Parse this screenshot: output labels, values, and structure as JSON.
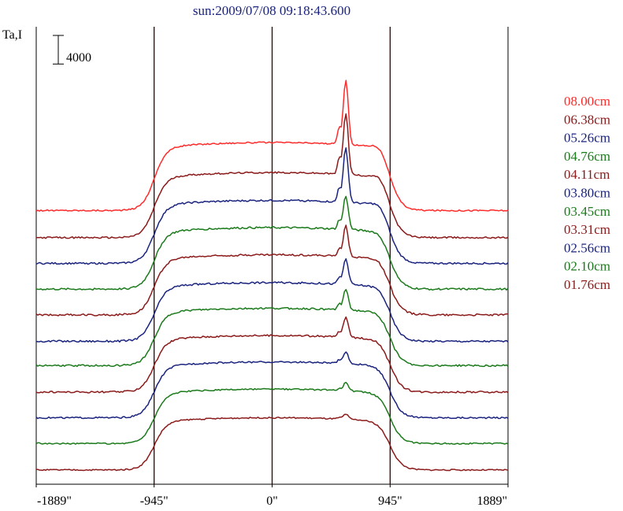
{
  "chart_data": {
    "type": "line",
    "title": "sun:2009/07/08 09:18:43.600",
    "ylabel": "Ta,I",
    "scale_bar_label": "4000",
    "scale_bar_value": 4000,
    "x_tick_labels": [
      "-1889\"",
      "-945\"",
      "0\"",
      "945\"",
      "1889\""
    ],
    "x_ticks": [
      -1889,
      -945,
      0,
      945,
      1889
    ],
    "xlim": [
      -1889,
      1889
    ],
    "ylim": [
      -1000,
      63000
    ],
    "vertical_lines": [
      -945,
      0,
      945
    ],
    "grid": false,
    "legend_position": "right",
    "colors": {
      "title": "#1a237e",
      "axes": "#000000",
      "vline": "#3a0000"
    },
    "series": [
      {
        "name": "08.00cm",
        "color": "#ff2b2b",
        "offset": 37000,
        "base": 300,
        "disk": 9500,
        "spike": 9000,
        "noise": 200
      },
      {
        "name": "06.38cm",
        "color": "#8b1a1a",
        "offset": 33200,
        "base": 300,
        "disk": 9100,
        "spike": 8600,
        "noise": 220
      },
      {
        "name": "05.26cm",
        "color": "#1a237e",
        "offset": 29600,
        "base": 300,
        "disk": 8800,
        "spike": 7600,
        "noise": 240
      },
      {
        "name": "04.76cm",
        "color": "#1b7a1b",
        "offset": 26000,
        "base": 300,
        "disk": 8600,
        "spike": 4700,
        "noise": 260
      },
      {
        "name": "04.11cm",
        "color": "#8b1a1a",
        "offset": 22400,
        "base": 300,
        "disk": 8400,
        "spike": 4300,
        "noise": 260
      },
      {
        "name": "03.80cm",
        "color": "#1a237e",
        "offset": 18700,
        "base": 300,
        "disk": 8200,
        "spike": 3600,
        "noise": 260
      },
      {
        "name": "03.45cm",
        "color": "#1b7a1b",
        "offset": 15300,
        "base": 300,
        "disk": 8000,
        "spike": 3000,
        "noise": 250
      },
      {
        "name": "03.31cm",
        "color": "#8b1a1a",
        "offset": 11600,
        "base": 300,
        "disk": 7900,
        "spike": 2800,
        "noise": 250
      },
      {
        "name": "02.56cm",
        "color": "#1a237e",
        "offset": 8000,
        "base": 300,
        "disk": 7800,
        "spike": 1700,
        "noise": 220
      },
      {
        "name": "02.10cm",
        "color": "#1b7a1b",
        "offset": 4400,
        "base": 300,
        "disk": 7600,
        "spike": 1100,
        "noise": 200
      },
      {
        "name": "01.76cm",
        "color": "#8b1a1a",
        "offset": 700,
        "base": 300,
        "disk": 7300,
        "spike": 700,
        "noise": 180
      }
    ]
  }
}
